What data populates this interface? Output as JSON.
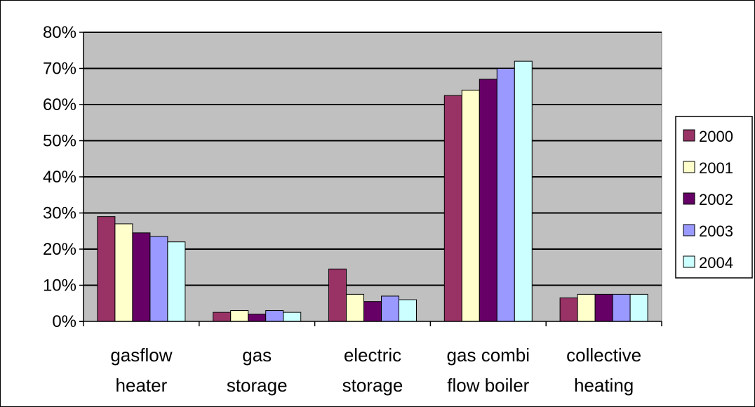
{
  "chart_data": {
    "type": "bar",
    "title": "",
    "xlabel": "",
    "ylabel": "",
    "ylim": [
      0,
      80
    ],
    "y_tick_format": "percent",
    "y_ticks": [
      "0%",
      "10%",
      "20%",
      "30%",
      "40%",
      "50%",
      "60%",
      "70%",
      "80%"
    ],
    "grid": true,
    "legend_position": "right",
    "categories": [
      [
        "gasflow",
        "heater"
      ],
      [
        "gas",
        "storage"
      ],
      [
        "electric",
        "storage"
      ],
      [
        "gas combi",
        "flow boiler"
      ],
      [
        "collective",
        "heating"
      ]
    ],
    "series": [
      {
        "name": "2000",
        "color": "#993366",
        "values": [
          29,
          2.5,
          14.5,
          62.5,
          6.5
        ]
      },
      {
        "name": "2001",
        "color": "#FFFFCC",
        "values": [
          27,
          3,
          7.5,
          64,
          7.5
        ]
      },
      {
        "name": "2002",
        "color": "#660066",
        "values": [
          24.5,
          2,
          5.5,
          67,
          7.5
        ]
      },
      {
        "name": "2003",
        "color": "#9999FF",
        "values": [
          23.5,
          3,
          7,
          70,
          7.5
        ]
      },
      {
        "name": "2004",
        "color": "#CCFFFF",
        "values": [
          22,
          2.5,
          6,
          72,
          7.5
        ]
      }
    ],
    "colors": {
      "plot_background": "#C0C0C0",
      "gridline": "#000000",
      "bar_outline": "#000000"
    }
  }
}
